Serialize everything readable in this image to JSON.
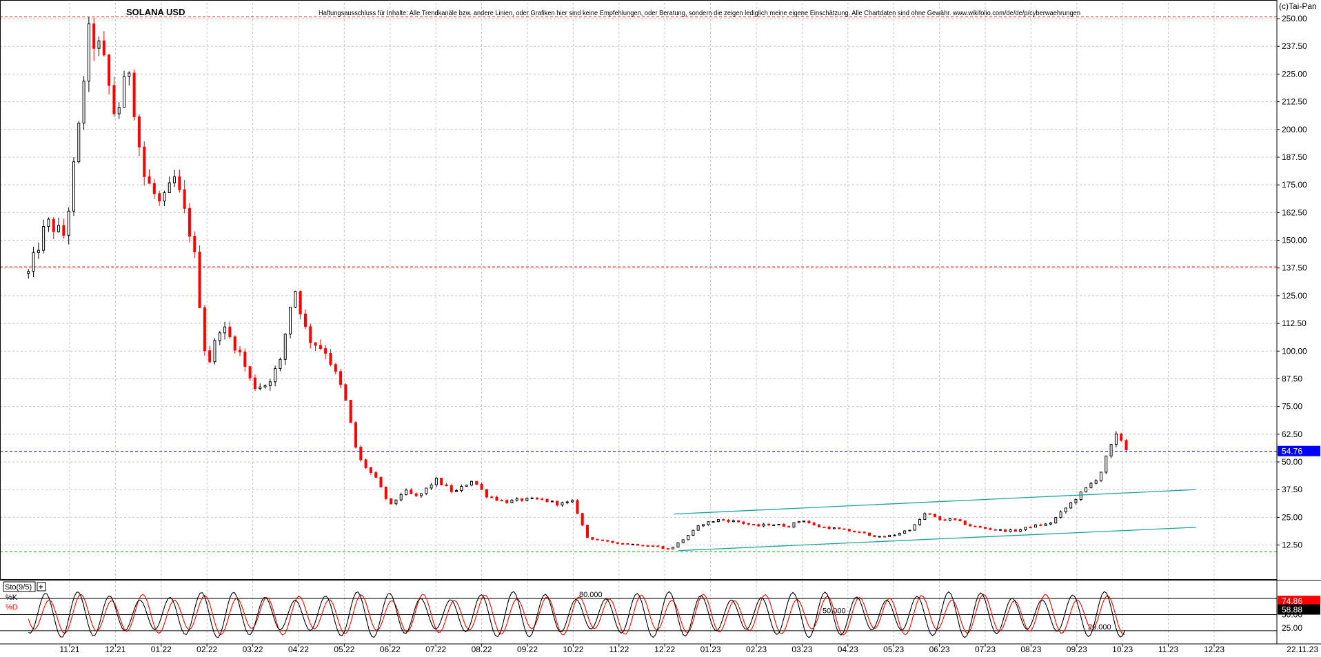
{
  "header": {
    "title": "SOLANA USD",
    "disclaimer": "Haftungsausschluss für Inhalte: Alle Trendkanäle bzw. andere Linien, oder Grafiken hier sind keine Empfehlungen, oder Beratung, sondern die zeigen lediglich meine eigene Einschätzung. Alle Chartdaten sind ohne Gewähr. www.wikifolio.com/de/de/p/cyberwaehrungen",
    "copyright": "(c)Tai-Pan"
  },
  "chart_data": [
    {
      "type": "candlestick",
      "title": "SOLANA USD",
      "x_tick_labels": [
        "11.21",
        "12.21",
        "01.22",
        "02.22",
        "03.22",
        "04.22",
        "05.22",
        "06.22",
        "07.22",
        "08.22",
        "09.22",
        "10.22",
        "11.22",
        "12.22",
        "01.23",
        "02.23",
        "03.23",
        "04.23",
        "05.23",
        "06.23",
        "07.23",
        "08.23",
        "09.23",
        "10.23",
        "11.23",
        "12.23"
      ],
      "y_tick_labels": [
        "250.00",
        "237.50",
        "225.00",
        "212.50",
        "200.00",
        "187.50",
        "175.00",
        "162.50",
        "150.00",
        "137.50",
        "125.00",
        "112.50",
        "100.00",
        "87.50",
        "75.00",
        "62.50",
        "50.00",
        "37.50",
        "25.00",
        "12.50"
      ],
      "ylim": [
        0,
        252
      ],
      "last_price": 54.76,
      "last_price_label": "54.76",
      "last_date_label": "22.11.23",
      "up_color": "#000000",
      "down_color": "#ff0000",
      "horizontal_lines": [
        {
          "value": 250.8,
          "color": "#ff0000",
          "style": "dashed"
        },
        {
          "value": 138.0,
          "color": "#ff0000",
          "style": "dashed"
        },
        {
          "value": 54.76,
          "color": "#0000ff",
          "style": "dashed"
        },
        {
          "value": 9.5,
          "color": "#00aa00",
          "style": "dashed"
        }
      ],
      "trend_channel": {
        "color": "#1aa39a",
        "upper": [
          {
            "month": 13.2,
            "value": 26.5
          },
          {
            "month": 24.6,
            "value": 37.5
          }
        ],
        "lower": [
          {
            "month": 13.3,
            "value": 10.0
          },
          {
            "month": 24.6,
            "value": 20.5
          }
        ]
      },
      "monthly_path": [
        {
          "month": -0.9,
          "value": 135
        },
        {
          "month": -0.5,
          "value": 158
        },
        {
          "month": -0.1,
          "value": 152
        },
        {
          "month": 0.2,
          "value": 200
        },
        {
          "month": 0.4,
          "value": 243
        },
        {
          "month": 0.7,
          "value": 235
        },
        {
          "month": 1.0,
          "value": 205
        },
        {
          "month": 1.3,
          "value": 228
        },
        {
          "month": 1.6,
          "value": 180
        },
        {
          "month": 2.0,
          "value": 165
        },
        {
          "month": 2.3,
          "value": 178
        },
        {
          "month": 2.7,
          "value": 148
        },
        {
          "month": 3.0,
          "value": 92
        },
        {
          "month": 3.3,
          "value": 112
        },
        {
          "month": 3.7,
          "value": 100
        },
        {
          "month": 4.0,
          "value": 84
        },
        {
          "month": 4.3,
          "value": 85
        },
        {
          "month": 4.6,
          "value": 95
        },
        {
          "month": 4.9,
          "value": 130
        },
        {
          "month": 5.2,
          "value": 106
        },
        {
          "month": 5.6,
          "value": 100
        },
        {
          "month": 6.0,
          "value": 80
        },
        {
          "month": 6.3,
          "value": 52
        },
        {
          "month": 6.7,
          "value": 42
        },
        {
          "month": 7.0,
          "value": 30
        },
        {
          "month": 7.3,
          "value": 37
        },
        {
          "month": 7.6,
          "value": 34
        },
        {
          "month": 8.0,
          "value": 42
        },
        {
          "month": 8.4,
          "value": 36
        },
        {
          "month": 8.8,
          "value": 42
        },
        {
          "month": 9.1,
          "value": 35
        },
        {
          "month": 9.5,
          "value": 32
        },
        {
          "month": 9.9,
          "value": 33
        },
        {
          "month": 10.3,
          "value": 33
        },
        {
          "month": 10.7,
          "value": 31
        },
        {
          "month": 11.0,
          "value": 32
        },
        {
          "month": 11.3,
          "value": 16
        },
        {
          "month": 11.7,
          "value": 14
        },
        {
          "month": 12.2,
          "value": 13
        },
        {
          "month": 12.8,
          "value": 12
        },
        {
          "month": 13.1,
          "value": 10.5
        },
        {
          "month": 13.4,
          "value": 15
        },
        {
          "month": 13.8,
          "value": 22
        },
        {
          "month": 14.2,
          "value": 24
        },
        {
          "month": 14.6,
          "value": 23
        },
        {
          "month": 15.0,
          "value": 21
        },
        {
          "month": 15.3,
          "value": 22
        },
        {
          "month": 15.7,
          "value": 21
        },
        {
          "month": 16.0,
          "value": 24
        },
        {
          "month": 16.3,
          "value": 21
        },
        {
          "month": 16.7,
          "value": 20
        },
        {
          "month": 17.0,
          "value": 19
        },
        {
          "month": 17.3,
          "value": 18
        },
        {
          "month": 17.7,
          "value": 16
        },
        {
          "month": 18.0,
          "value": 17
        },
        {
          "month": 18.4,
          "value": 20
        },
        {
          "month": 18.7,
          "value": 27
        },
        {
          "month": 19.0,
          "value": 24
        },
        {
          "month": 19.3,
          "value": 24
        },
        {
          "month": 19.7,
          "value": 21
        },
        {
          "month": 20.0,
          "value": 20
        },
        {
          "month": 20.4,
          "value": 19
        },
        {
          "month": 20.7,
          "value": 19
        },
        {
          "month": 21.0,
          "value": 21
        },
        {
          "month": 21.4,
          "value": 22
        },
        {
          "month": 21.8,
          "value": 30
        },
        {
          "month": 22.2,
          "value": 38
        },
        {
          "month": 22.5,
          "value": 44
        },
        {
          "month": 22.7,
          "value": 55
        },
        {
          "month": 22.9,
          "value": 63
        },
        {
          "month": 23.1,
          "value": 55
        }
      ]
    },
    {
      "type": "line",
      "name": "Sto(9/5)",
      "series": [
        {
          "name": "%K",
          "color": "#000000",
          "last_value_label": "58.88"
        },
        {
          "name": "%D",
          "color": "#ff0000",
          "last_value_label": "74.86"
        }
      ],
      "y_tick_labels": [
        "75.00",
        "50.00",
        "25.00"
      ],
      "level_labels": [
        "80.000",
        "50.000",
        "20.000"
      ],
      "ylim": [
        0,
        100
      ]
    }
  ],
  "panel_button": "+"
}
